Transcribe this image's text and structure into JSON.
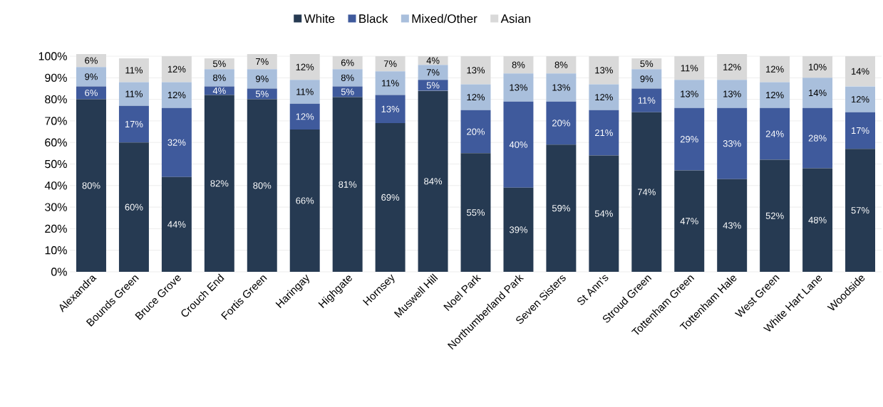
{
  "chart_data": {
    "type": "bar",
    "stacked": true,
    "categories": [
      "Alexandra",
      "Bounds Green",
      "Bruce Grove",
      "Crouch End",
      "Fortis Green",
      "Haringay",
      "Highgate",
      "Hornsey",
      "Muswell Hill",
      "Noel Park",
      "Northumberland Park",
      "Seven Sisters",
      "St Ann's",
      "Stroud Green",
      "Tottenham Green",
      "Tottenham Hale",
      "West Green",
      "White Hart Lane",
      "Woodside"
    ],
    "series": [
      {
        "name": "White",
        "color": "#263a52",
        "values": [
          80,
          60,
          44,
          82,
          80,
          66,
          81,
          69,
          84,
          55,
          39,
          59,
          54,
          74,
          47,
          43,
          52,
          48,
          57
        ],
        "value_labels": [
          "80%",
          "60%",
          "44%",
          "82%",
          "80%",
          "66%",
          "81%",
          "69%",
          "84%",
          "55%",
          "39%",
          "59%",
          "54%",
          "74%",
          "47%",
          "43%",
          "52%",
          "48%",
          "57%"
        ]
      },
      {
        "name": "Black",
        "color": "#3f5a9c",
        "values": [
          6,
          17,
          32,
          4,
          5,
          12,
          5,
          13,
          5,
          20,
          40,
          20,
          21,
          11,
          29,
          33,
          24,
          28,
          17
        ],
        "value_labels": [
          "6%",
          "17%",
          "32%",
          "4%",
          "5%",
          "12%",
          "5%",
          "13%",
          "5%",
          "20%",
          "40%",
          "20%",
          "21%",
          "11%",
          "29%",
          "33%",
          "24%",
          "28%",
          "17%"
        ]
      },
      {
        "name": "Mixed/Other",
        "color": "#a9bfdc",
        "values": [
          9,
          11,
          12,
          8,
          9,
          11,
          8,
          11,
          7,
          12,
          13,
          13,
          12,
          9,
          13,
          13,
          12,
          14,
          12
        ],
        "value_labels": [
          "9%",
          "11%",
          "12%",
          "8%",
          "9%",
          "11%",
          "8%",
          "11%",
          "7%",
          "12%",
          "13%",
          "13%",
          "12%",
          "9%",
          "13%",
          "13%",
          "12%",
          "14%",
          "12%"
        ]
      },
      {
        "name": "Asian",
        "color": "#d9d9d9",
        "values": [
          6,
          11,
          12,
          5,
          7,
          12,
          6,
          7,
          4,
          13,
          8,
          8,
          13,
          5,
          11,
          12,
          12,
          10,
          14
        ],
        "value_labels": [
          "6%",
          "11%",
          "12%",
          "5%",
          "7%",
          "12%",
          "6%",
          "7%",
          "4%",
          "13%",
          "8%",
          "8%",
          "13%",
          "5%",
          "11%",
          "12%",
          "12%",
          "10%",
          "14%"
        ]
      }
    ],
    "ylim": [
      0,
      101
    ],
    "yticks": [
      {
        "value": 0,
        "label": "0%"
      },
      {
        "value": 10,
        "label": "10%"
      },
      {
        "value": 20,
        "label": "20%"
      },
      {
        "value": 30,
        "label": "30%"
      },
      {
        "value": 40,
        "label": "40%"
      },
      {
        "value": 50,
        "label": "50%"
      },
      {
        "value": 60,
        "label": "60%"
      },
      {
        "value": 70,
        "label": "70%"
      },
      {
        "value": 80,
        "label": "80%"
      },
      {
        "value": 90,
        "label": "90%"
      },
      {
        "value": 100,
        "label": "100%"
      }
    ],
    "grid": "y",
    "legend": "top"
  }
}
